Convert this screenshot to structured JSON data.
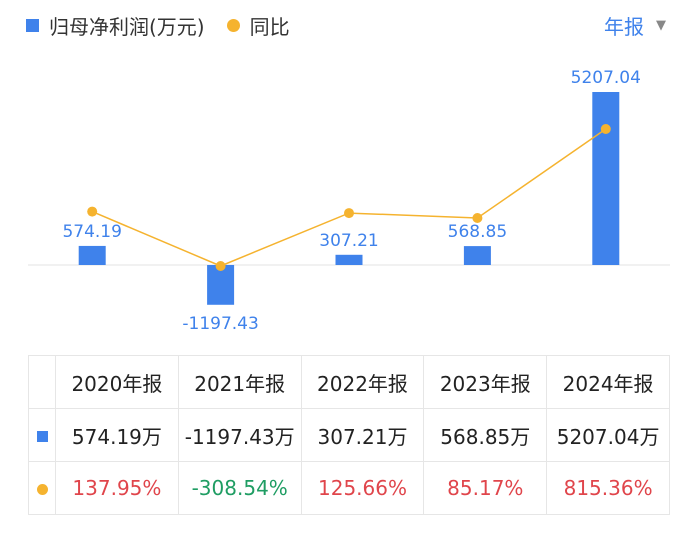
{
  "legend": {
    "bar_label": "归母净利润(万元)",
    "line_label": "同比"
  },
  "period_selector": {
    "label": "年报",
    "caret": "▼"
  },
  "colors": {
    "bar": "#3f82eb",
    "line": "#f5b32f",
    "up": "#e0454b",
    "down": "#1f9d63"
  },
  "chart_data": {
    "type": "bar",
    "categories": [
      "2020年报",
      "2021年报",
      "2022年报",
      "2023年报",
      "2024年报"
    ],
    "series": [
      {
        "name": "归母净利润(万元)",
        "type": "bar",
        "values": [
          574.19,
          -1197.43,
          307.21,
          568.85,
          5207.04
        ],
        "labels": [
          "574.19",
          "-1197.43",
          "307.21",
          "568.85",
          "5207.04"
        ]
      },
      {
        "name": "同比",
        "type": "line",
        "values": [
          137.95,
          -308.54,
          125.66,
          85.17,
          815.36
        ]
      }
    ]
  },
  "table": {
    "headers": [
      "2020年报",
      "2021年报",
      "2022年报",
      "2023年报",
      "2024年报"
    ],
    "profit_row": [
      "574.19万",
      "-1197.43万",
      "307.21万",
      "568.85万",
      "5207.04万"
    ],
    "yoy_row": [
      {
        "text": "137.95%",
        "dir": "up"
      },
      {
        "text": "-308.54%",
        "dir": "down"
      },
      {
        "text": "125.66%",
        "dir": "up"
      },
      {
        "text": "85.17%",
        "dir": "up"
      },
      {
        "text": "815.36%",
        "dir": "up"
      }
    ]
  }
}
